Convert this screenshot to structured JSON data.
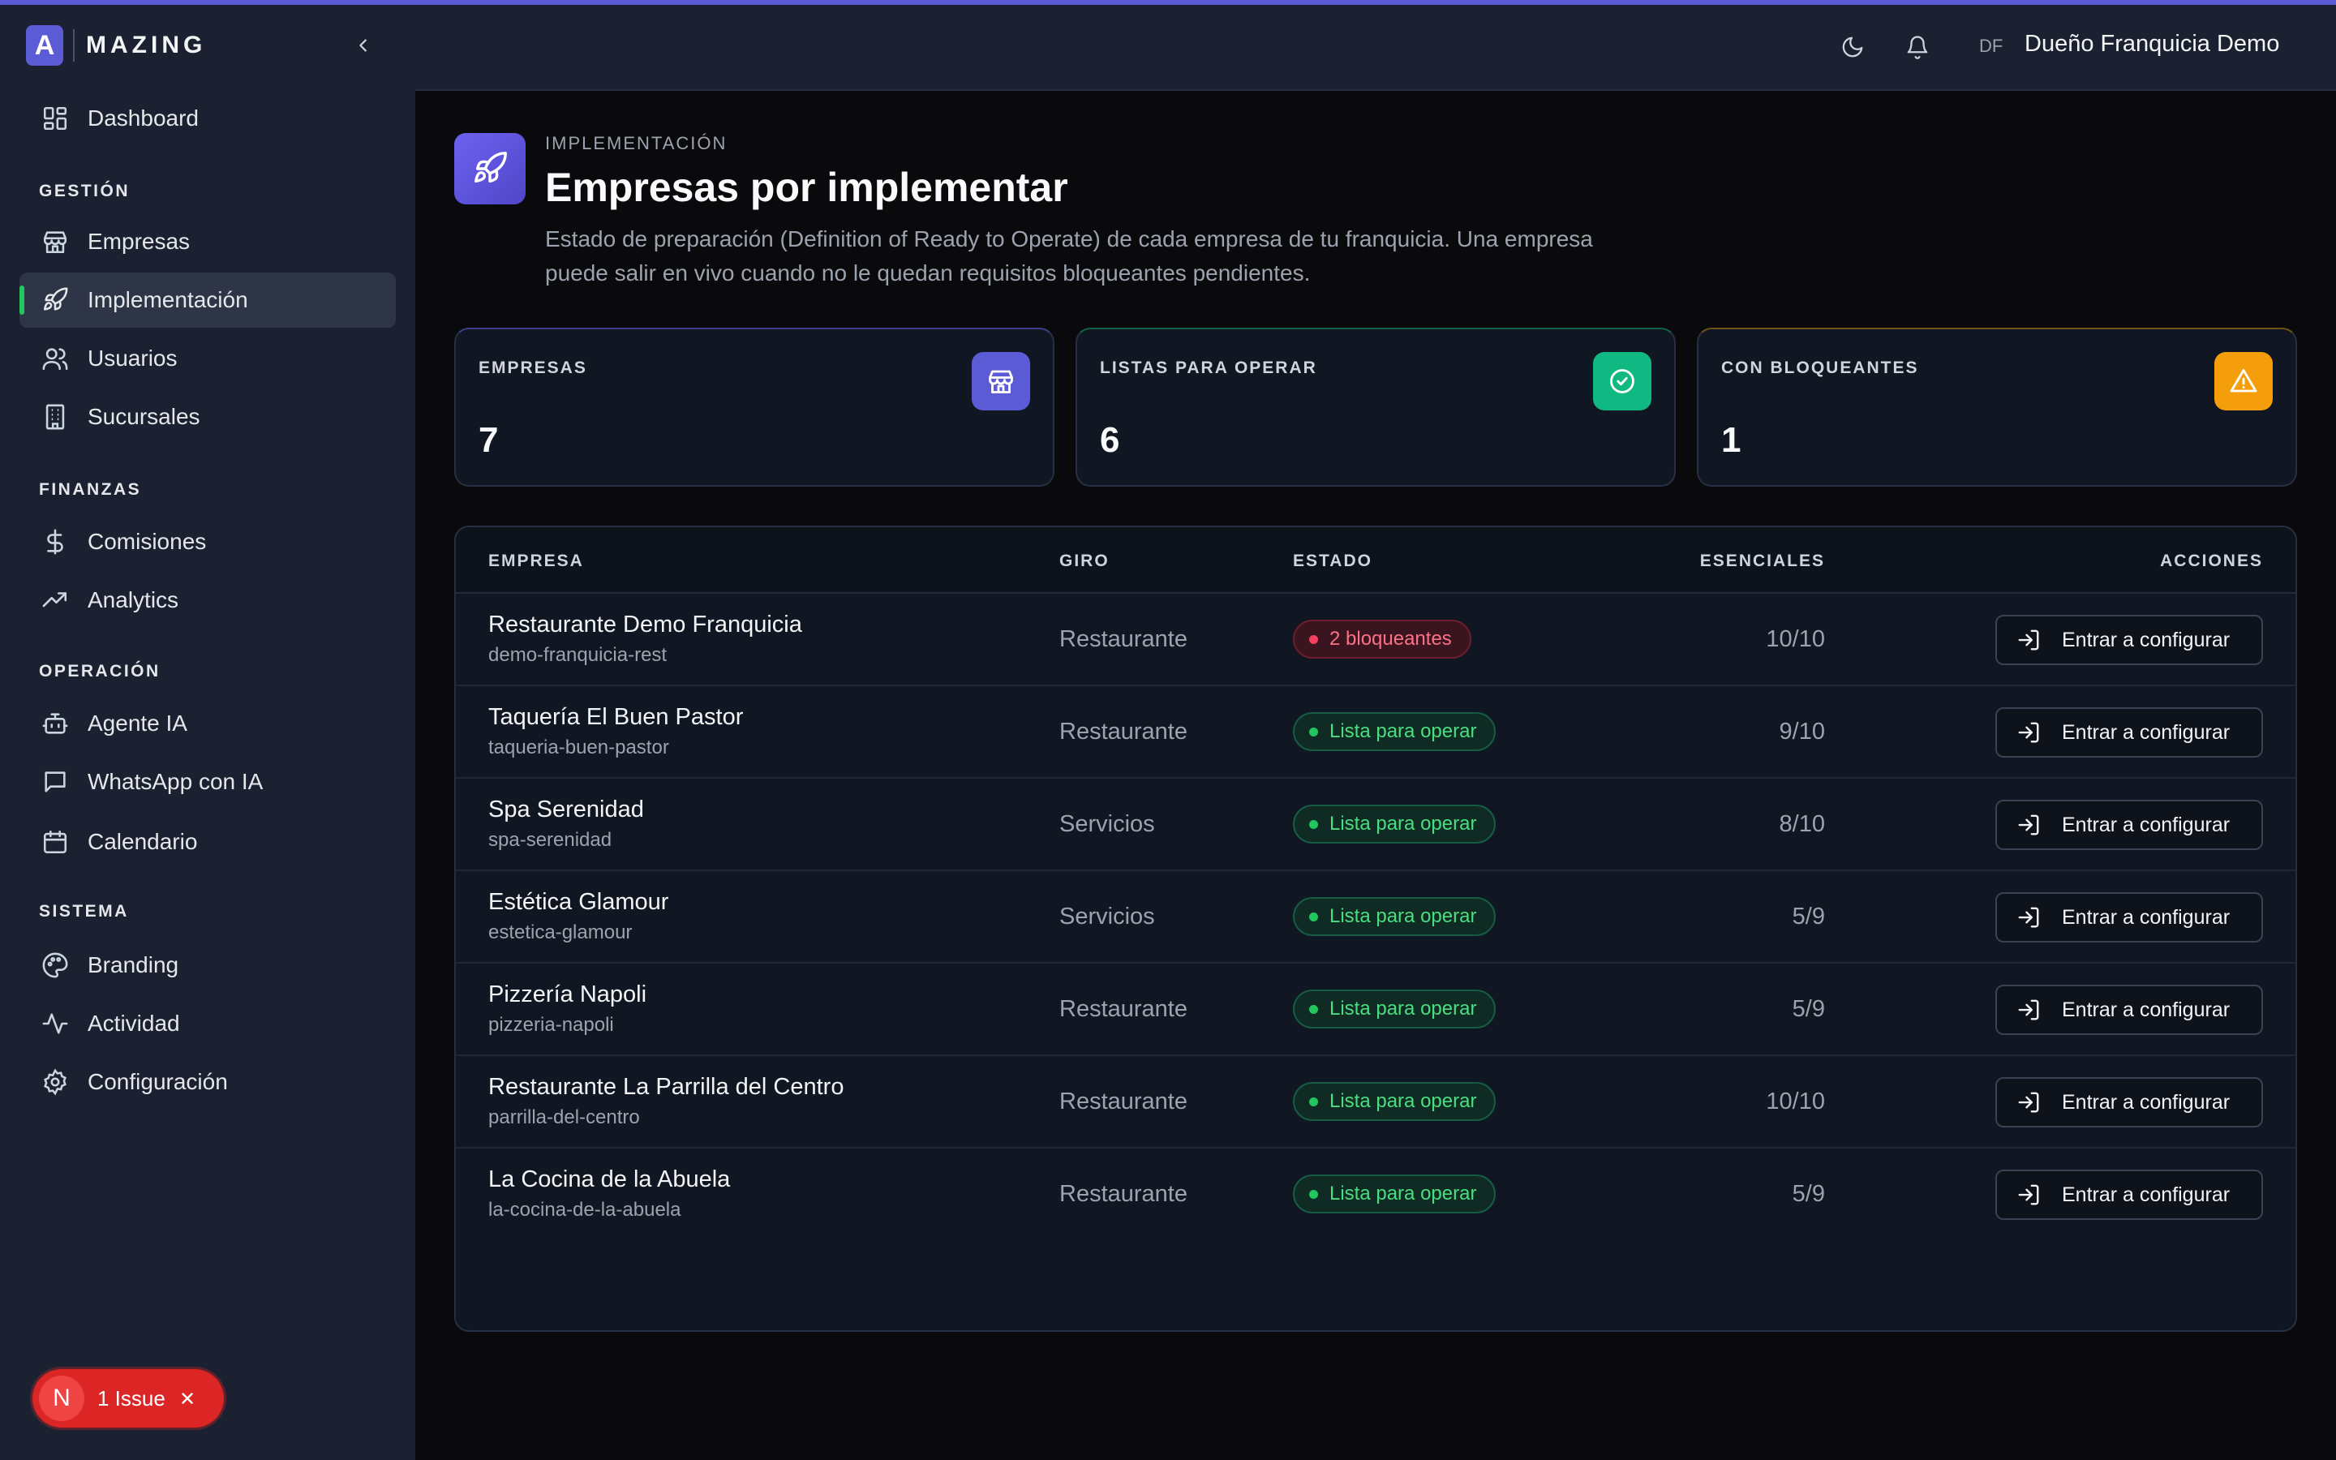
{
  "brand": {
    "logo_letter": "A",
    "name": "MAZING"
  },
  "sidebar": {
    "dashboard": "Dashboard",
    "sections": [
      {
        "label": "GESTIÓN",
        "items": [
          {
            "label": "Empresas",
            "icon": "store-icon"
          },
          {
            "label": "Implementación",
            "icon": "rocket-icon",
            "active": true
          },
          {
            "label": "Usuarios",
            "icon": "users-icon"
          },
          {
            "label": "Sucursales",
            "icon": "building-icon"
          }
        ]
      },
      {
        "label": "FINANZAS",
        "items": [
          {
            "label": "Comisiones",
            "icon": "dollar-icon"
          },
          {
            "label": "Analytics",
            "icon": "trending-up-icon"
          }
        ]
      },
      {
        "label": "OPERACIÓN",
        "items": [
          {
            "label": "Agente IA",
            "icon": "bot-icon"
          },
          {
            "label": "WhatsApp con IA",
            "icon": "chat-icon"
          },
          {
            "label": "Calendario",
            "icon": "calendar-icon"
          }
        ]
      },
      {
        "label": "SISTEMA",
        "items": [
          {
            "label": "Branding",
            "icon": "palette-icon"
          },
          {
            "label": "Actividad",
            "icon": "activity-icon"
          },
          {
            "label": "Configuración",
            "icon": "gear-icon"
          }
        ]
      }
    ]
  },
  "header": {
    "initials": "DF",
    "user_name": "Dueño Franquicia Demo"
  },
  "page": {
    "eyebrow": "IMPLEMENTACIÓN",
    "title": "Empresas por implementar",
    "description": "Estado de preparación (Definition of Ready to Operate) de cada empresa de tu franquicia. Una empresa puede salir en vivo cuando no le quedan requisitos bloqueantes pendientes."
  },
  "stats": [
    {
      "label": "EMPRESAS",
      "value": "7",
      "color": "#5b5bd6",
      "icon": "store-icon"
    },
    {
      "label": "LISTAS PARA OPERAR",
      "value": "6",
      "color": "#10b981",
      "icon": "check-circle-icon"
    },
    {
      "label": "CON BLOQUEANTES",
      "value": "1",
      "color": "#f59e0b",
      "icon": "warning-icon"
    }
  ],
  "table": {
    "headers": {
      "empresa": "EMPRESA",
      "giro": "GIRO",
      "estado": "ESTADO",
      "esenciales": "ESENCIALES",
      "acciones": "ACCIONES"
    },
    "action_label": "Entrar a configurar",
    "rows": [
      {
        "name": "Restaurante Demo Franquicia",
        "slug": "demo-franquicia-rest",
        "giro": "Restaurante",
        "status": "2 bloqueantes",
        "status_type": "bad",
        "esenciales": "10/10"
      },
      {
        "name": "Taquería El Buen Pastor",
        "slug": "taqueria-buen-pastor",
        "giro": "Restaurante",
        "status": "Lista para operar",
        "status_type": "ok",
        "esenciales": "9/10"
      },
      {
        "name": "Spa Serenidad",
        "slug": "spa-serenidad",
        "giro": "Servicios",
        "status": "Lista para operar",
        "status_type": "ok",
        "esenciales": "8/10"
      },
      {
        "name": "Estética Glamour",
        "slug": "estetica-glamour",
        "giro": "Servicios",
        "status": "Lista para operar",
        "status_type": "ok",
        "esenciales": "5/9"
      },
      {
        "name": "Pizzería Napoli",
        "slug": "pizzeria-napoli",
        "giro": "Restaurante",
        "status": "Lista para operar",
        "status_type": "ok",
        "esenciales": "5/9"
      },
      {
        "name": "Restaurante La Parrilla del Centro",
        "slug": "parrilla-del-centro",
        "giro": "Restaurante",
        "status": "Lista para operar",
        "status_type": "ok",
        "esenciales": "10/10"
      },
      {
        "name": "La Cocina de la Abuela",
        "slug": "la-cocina-de-la-abuela",
        "giro": "Restaurante",
        "status": "Lista para operar",
        "status_type": "ok",
        "esenciales": "5/9"
      }
    ]
  },
  "issue_toast": {
    "letter": "N",
    "label": "1 Issue"
  }
}
